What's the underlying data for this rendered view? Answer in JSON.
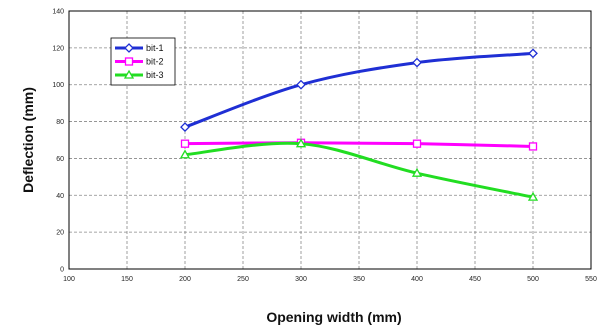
{
  "chart_data": {
    "type": "line",
    "title": "",
    "xlabel": "Opening width (mm)",
    "ylabel": "Deflection (mm)",
    "xlim": [
      100,
      550
    ],
    "ylim": [
      0,
      140
    ],
    "x_ticks": [
      100,
      150,
      200,
      250,
      300,
      350,
      400,
      450,
      500,
      550
    ],
    "y_ticks": [
      0,
      20,
      40,
      60,
      80,
      100,
      120,
      140
    ],
    "grid": true,
    "legend_position": "top-left",
    "series": [
      {
        "name": "bit-1",
        "color": "#1f2fd4",
        "marker": "diamond",
        "x": [
          200,
          300,
          400,
          500
        ],
        "y": [
          77,
          100,
          112,
          117
        ]
      },
      {
        "name": "bit-2",
        "color": "#ff00ff",
        "marker": "square",
        "x": [
          200,
          300,
          400,
          500
        ],
        "y": [
          68,
          68.5,
          68,
          66.5
        ]
      },
      {
        "name": "bit-3",
        "color": "#22dd22",
        "marker": "triangle",
        "x": [
          200,
          300,
          400,
          500
        ],
        "y": [
          62,
          68,
          52,
          39
        ]
      }
    ]
  }
}
